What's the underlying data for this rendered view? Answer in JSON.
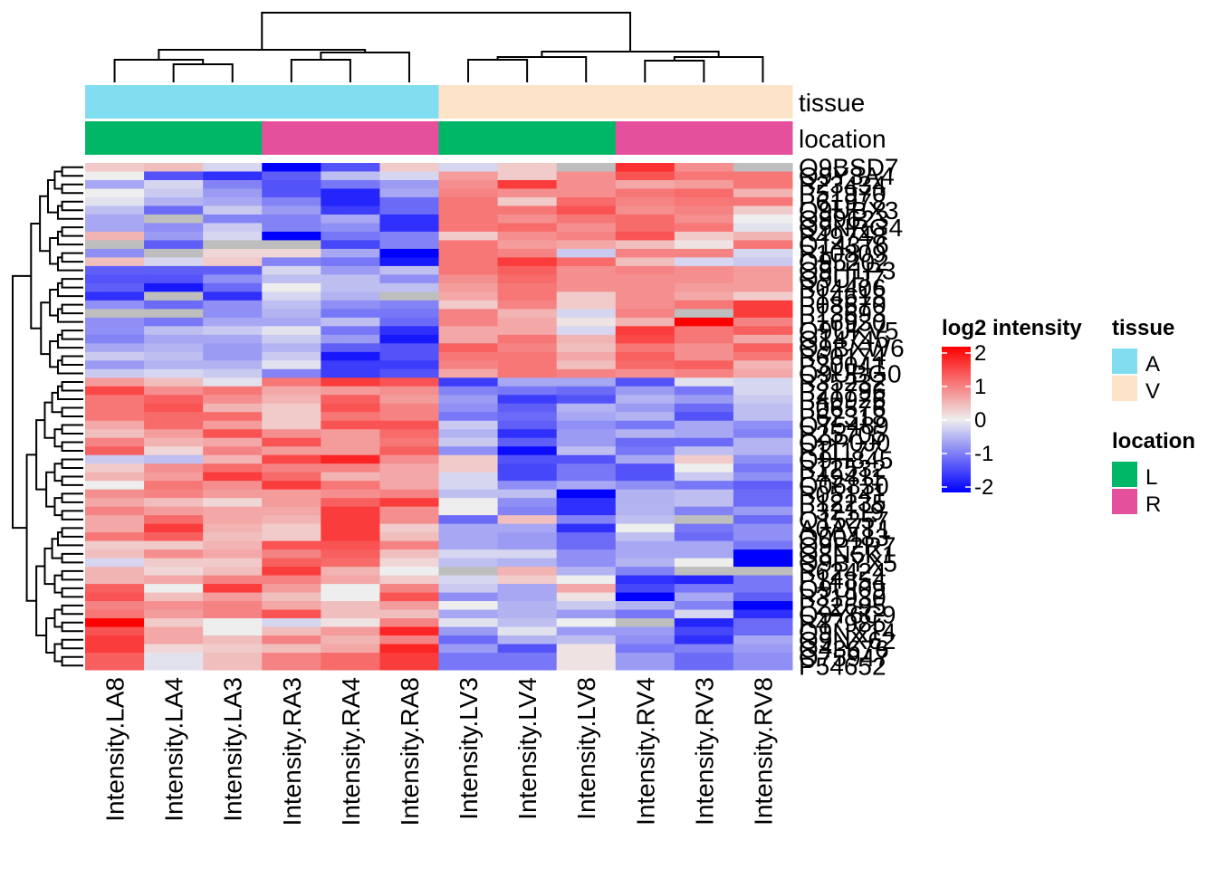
{
  "chart_data": {
    "type": "heatmap",
    "title": "",
    "columns": [
      "Intensity.LA8",
      "Intensity.LA4",
      "Intensity.LA3",
      "Intensity.RA3",
      "Intensity.RA4",
      "Intensity.RA8",
      "Intensity.LV3",
      "Intensity.LV4",
      "Intensity.LV8",
      "Intensity.RV4",
      "Intensity.RV3",
      "Intensity.RV8"
    ],
    "column_annotations": {
      "tissue": [
        "A",
        "A",
        "A",
        "A",
        "A",
        "A",
        "V",
        "V",
        "V",
        "V",
        "V",
        "V"
      ],
      "location": [
        "L",
        "L",
        "L",
        "R",
        "R",
        "R",
        "L",
        "L",
        "L",
        "R",
        "R",
        "R"
      ]
    },
    "annotation_names": [
      "tissue",
      "location"
    ],
    "row_labels": [
      "Q9BSD7",
      "Q9Y3A4",
      "P23434",
      "P51970",
      "P61978",
      "Q9UBX3",
      "Q99623",
      "Q9NRG4",
      "P49748",
      "Q14376",
      "P10809",
      "O95202",
      "Q9H1P3",
      "Q9UIJ7",
      "P04406",
      "P14618",
      "P08670",
      "P13693",
      "P16930",
      "Q9UKV5",
      "O14745",
      "Q9BXW6",
      "P60174",
      "P30041",
      "Q9UBG0",
      "P35232",
      "P21796",
      "P40926",
      "P06576",
      "P62318",
      "O75489",
      "P25705",
      "Q9P0J0",
      "P11177",
      "Q9H845",
      "P12532",
      "P49411",
      "Q06830",
      "P05141",
      "P12235",
      "P32119",
      "Q15257",
      "A0AVT1",
      "O00483",
      "Q9P2R7",
      "Q8N5K1",
      "Q9BYX5",
      "P62424",
      "P14854",
      "Q9UI09",
      "P31930",
      "P22695",
      "Q9Y6C9",
      "P47985",
      "Q9NX14",
      "Q9NX62",
      "O43676",
      "O75947",
      "P54652"
    ],
    "values": [
      [
        0.3,
        0.4,
        -0.2,
        -2.0,
        -1.3,
        0.3,
        -0.2,
        0.3,
        null,
        1.6,
        0.8,
        null
      ],
      [
        0.0,
        -1.3,
        -1.6,
        -1.2,
        -0.4,
        -0.2,
        0.7,
        0.3,
        0.8,
        1.3,
        1.0,
        1.0
      ],
      [
        -0.6,
        -0.2,
        -0.9,
        -1.3,
        -1.0,
        -0.7,
        0.8,
        1.5,
        0.8,
        0.6,
        0.7,
        1.0
      ],
      [
        0.0,
        -0.3,
        -0.7,
        -1.3,
        -1.7,
        -0.6,
        0.9,
        0.8,
        0.8,
        1.0,
        1.1,
        0.5
      ],
      [
        -0.1,
        -0.5,
        -0.6,
        -0.9,
        -1.7,
        -1.1,
        1.0,
        0.3,
        1.1,
        0.9,
        1.0,
        1.0
      ],
      [
        -0.4,
        -1.1,
        -0.3,
        -0.7,
        -1.5,
        -1.1,
        1.0,
        1.0,
        1.3,
        0.8,
        0.9,
        0.3
      ],
      [
        -0.6,
        null,
        -0.9,
        -0.9,
        -0.6,
        -1.6,
        1.0,
        0.8,
        1.0,
        1.1,
        0.8,
        0.0
      ],
      [
        -0.6,
        -0.8,
        -0.3,
        -0.9,
        -0.8,
        -1.6,
        1.0,
        1.1,
        0.8,
        1.1,
        1.0,
        -0.1
      ],
      [
        0.5,
        -0.7,
        -0.2,
        -2.0,
        -1.0,
        -0.9,
        0.3,
        0.8,
        0.9,
        1.3,
        0.3,
        0.5
      ],
      [
        null,
        -1.2,
        null,
        null,
        -1.4,
        -0.9,
        1.0,
        0.7,
        0.6,
        0.4,
        0.1,
        1.0
      ],
      [
        -0.8,
        null,
        0.2,
        0.2,
        -0.6,
        -2.0,
        1.0,
        0.9,
        -0.3,
        0.9,
        0.9,
        -0.2
      ],
      [
        0.4,
        -0.2,
        0.3,
        -0.9,
        -1.0,
        -1.8,
        1.0,
        1.5,
        1.1,
        0.4,
        -0.2,
        -0.3
      ],
      [
        -1.2,
        -1.2,
        -1.2,
        -0.2,
        -0.7,
        -0.4,
        1.0,
        1.2,
        0.8,
        0.9,
        0.8,
        0.7
      ],
      [
        -1.3,
        -1.3,
        -0.8,
        -0.4,
        -0.4,
        -0.8,
        0.8,
        1.1,
        0.8,
        0.8,
        0.8,
        0.7
      ],
      [
        -1.2,
        -1.8,
        -1.1,
        0.0,
        -0.4,
        -0.4,
        0.7,
        1.0,
        0.8,
        0.8,
        0.7,
        0.7
      ],
      [
        -1.6,
        null,
        -1.6,
        -0.2,
        -0.5,
        null,
        0.6,
        1.0,
        0.3,
        0.8,
        0.6,
        0.3
      ],
      [
        -0.8,
        -1.1,
        -0.8,
        -0.4,
        -0.8,
        -0.9,
        0.3,
        0.9,
        0.3,
        0.8,
        1.0,
        1.5
      ],
      [
        null,
        null,
        -0.8,
        -0.5,
        -1.0,
        -1.0,
        0.9,
        0.5,
        -0.2,
        0.9,
        null,
        1.5
      ],
      [
        -0.8,
        -1.0,
        -0.6,
        -0.6,
        -0.4,
        -1.1,
        0.9,
        0.6,
        0.1,
        0.5,
        2.0,
        0.9
      ],
      [
        -0.8,
        -0.4,
        -0.3,
        -0.1,
        -1.0,
        -1.6,
        0.6,
        0.6,
        -0.2,
        1.5,
        1.0,
        1.2
      ],
      [
        -0.9,
        -0.6,
        -0.6,
        -0.3,
        -0.7,
        -1.8,
        0.6,
        1.0,
        0.5,
        1.4,
        1.0,
        0.6
      ],
      [
        -0.6,
        -0.5,
        -0.7,
        -0.5,
        -1.2,
        -1.3,
        1.2,
        0.9,
        0.4,
        1.0,
        0.8,
        1.2
      ],
      [
        -0.3,
        -0.4,
        -0.7,
        -0.3,
        -1.8,
        -1.3,
        1.0,
        1.0,
        0.6,
        1.2,
        0.8,
        1.0
      ],
      [
        -0.7,
        -0.5,
        -0.5,
        -0.1,
        -1.5,
        -1.5,
        0.9,
        1.0,
        0.4,
        1.1,
        1.2,
        0.5
      ],
      [
        -0.3,
        -0.2,
        -0.3,
        -0.9,
        -1.5,
        -1.3,
        0.6,
        1.0,
        0.9,
        0.8,
        0.9,
        0.6
      ],
      [
        0.7,
        0.4,
        -0.1,
        1.0,
        1.5,
        1.3,
        -1.5,
        -0.6,
        -0.6,
        -1.3,
        -0.1,
        -0.2
      ],
      [
        1.4,
        0.8,
        1.0,
        0.6,
        0.7,
        0.8,
        -0.9,
        -1.0,
        -1.1,
        -0.7,
        -1.0,
        -0.2
      ],
      [
        1.0,
        1.2,
        0.8,
        0.5,
        1.2,
        0.7,
        -0.7,
        -1.5,
        -1.3,
        -0.5,
        -0.7,
        -0.3
      ],
      [
        1.0,
        1.3,
        0.5,
        0.3,
        1.3,
        0.9,
        -0.8,
        -1.2,
        -0.5,
        -0.7,
        -1.1,
        -0.4
      ],
      [
        1.0,
        1.1,
        1.1,
        0.3,
        1.0,
        0.9,
        -1.0,
        -1.1,
        -0.6,
        -0.5,
        -1.3,
        -0.4
      ],
      [
        0.6,
        1.1,
        0.7,
        0.3,
        1.3,
        1.3,
        -0.3,
        -1.2,
        -0.8,
        -1.0,
        -0.6,
        -0.8
      ],
      [
        0.4,
        0.7,
        1.3,
        0.8,
        0.7,
        1.1,
        -0.5,
        -1.6,
        -0.7,
        -0.5,
        -0.6,
        -0.9
      ],
      [
        0.9,
        0.5,
        0.6,
        1.3,
        0.7,
        1.0,
        -0.3,
        -1.2,
        -0.7,
        -1.1,
        -1.1,
        -0.5
      ],
      [
        1.2,
        0.2,
        0.9,
        0.7,
        0.7,
        1.2,
        -0.8,
        -1.9,
        -0.4,
        -1.0,
        -0.4,
        -0.5
      ],
      [
        -0.3,
        -0.4,
        0.5,
        1.4,
        1.7,
        0.8,
        0.3,
        -1.3,
        -1.3,
        -0.6,
        0.3,
        -0.8
      ],
      [
        0.3,
        0.8,
        1.1,
        0.9,
        0.9,
        0.6,
        0.3,
        -1.4,
        -1.0,
        -1.3,
        0.0,
        -1.0
      ],
      [
        0.5,
        0.7,
        1.5,
        1.1,
        0.5,
        0.6,
        -0.2,
        -1.4,
        -1.0,
        -1.3,
        -0.3,
        -0.8
      ],
      [
        0.0,
        1.0,
        0.8,
        1.5,
        1.0,
        0.6,
        -0.2,
        -0.8,
        -0.6,
        -0.8,
        -1.0,
        -1.2
      ],
      [
        0.8,
        0.9,
        0.7,
        0.7,
        0.8,
        0.9,
        -0.4,
        -0.4,
        -2.0,
        -0.5,
        -0.4,
        -1.1
      ],
      [
        0.6,
        0.4,
        0.2,
        0.7,
        1.2,
        1.5,
        0.0,
        -0.8,
        -1.6,
        -0.5,
        -0.4,
        -1.1
      ],
      [
        0.9,
        0.7,
        0.6,
        0.6,
        1.5,
        0.8,
        0.0,
        -0.9,
        -1.6,
        -0.5,
        -0.9,
        -0.7
      ],
      [
        0.6,
        1.1,
        0.6,
        0.5,
        1.5,
        0.8,
        -1.1,
        0.4,
        -0.9,
        -0.4,
        null,
        -1.1
      ],
      [
        0.6,
        1.5,
        0.5,
        0.3,
        1.5,
        0.3,
        -0.6,
        -0.6,
        -1.6,
        0.0,
        -1.0,
        -0.8
      ],
      [
        1.0,
        1.2,
        0.4,
        0.3,
        1.5,
        0.4,
        -0.6,
        -0.7,
        -1.1,
        -0.4,
        -1.1,
        -0.8
      ],
      [
        0.3,
        0.3,
        0.5,
        1.3,
        1.3,
        0.9,
        -0.6,
        -0.7,
        -1.1,
        -0.6,
        -0.6,
        -1.0
      ],
      [
        0.4,
        0.8,
        0.6,
        0.9,
        1.2,
        0.4,
        -0.2,
        -0.2,
        -0.8,
        -0.6,
        -0.6,
        -2.0
      ],
      [
        -0.2,
        0.3,
        0.3,
        1.2,
        1.1,
        0.2,
        -0.4,
        -0.5,
        -0.8,
        -0.5,
        0.0,
        -2.0
      ],
      [
        0.5,
        0.2,
        0.4,
        1.5,
        0.5,
        0.0,
        null,
        0.5,
        -0.5,
        -0.9,
        null,
        null
      ],
      [
        0.5,
        0.6,
        0.9,
        0.9,
        0.6,
        0.3,
        -0.2,
        0.3,
        0.0,
        -1.6,
        -1.7,
        -1.0
      ],
      [
        1.2,
        0.0,
        1.5,
        0.7,
        0.0,
        0.9,
        -0.3,
        -0.6,
        0.6,
        -1.4,
        -1.0,
        -1.0
      ],
      [
        1.3,
        0.4,
        0.7,
        0.4,
        0.0,
        1.3,
        -0.8,
        -0.6,
        0.1,
        -2.0,
        -0.6,
        -1.2
      ],
      [
        0.9,
        0.8,
        0.9,
        0.6,
        0.4,
        0.7,
        0.0,
        -0.5,
        -0.3,
        -0.5,
        -0.9,
        -2.0
      ],
      [
        1.0,
        0.7,
        0.9,
        1.3,
        0.4,
        0.4,
        -0.6,
        -0.5,
        -0.7,
        -1.0,
        -0.2,
        -1.6
      ],
      [
        2.0,
        0.3,
        0.0,
        -0.2,
        0.1,
        0.9,
        -0.1,
        -0.4,
        0.0,
        null,
        -1.7,
        -1.1
      ],
      [
        1.3,
        0.6,
        0.0,
        0.4,
        0.7,
        1.7,
        -0.7,
        -0.1,
        -0.7,
        -0.7,
        -1.4,
        -1.1
      ],
      [
        1.5,
        0.6,
        0.4,
        0.9,
        0.5,
        0.9,
        -1.1,
        -0.5,
        -0.4,
        -0.8,
        -1.6,
        -0.6
      ],
      [
        1.5,
        0.2,
        0.3,
        0.4,
        0.6,
        1.7,
        -0.7,
        -1.3,
        0.1,
        -1.0,
        -0.9,
        -0.7
      ],
      [
        1.2,
        -0.1,
        0.4,
        0.9,
        1.1,
        1.5,
        -1.0,
        -1.0,
        0.1,
        -0.7,
        -1.1,
        -0.8
      ],
      [
        1.2,
        -0.1,
        0.4,
        0.9,
        1.1,
        1.5,
        -1.0,
        -1.0,
        0.1,
        -0.7,
        -1.1,
        -0.8
      ]
    ],
    "color_scale": {
      "min": -2,
      "mid": 0,
      "max": 2,
      "low_color": "#0000FF",
      "mid_color": "#EEEEEE",
      "high_color": "#FF0000",
      "na_color": "#BEBEBE"
    },
    "legends": [
      {
        "title": "log2 intensity",
        "type": "continuous",
        "ticks": [
          "2",
          "1",
          "0",
          "-1",
          "-2"
        ]
      },
      {
        "title": "tissue",
        "type": "discrete",
        "items": [
          {
            "label": "A",
            "color": "#80DEF0"
          },
          {
            "label": "V",
            "color": "#FDE4C8"
          }
        ]
      },
      {
        "title": "location",
        "type": "discrete",
        "items": [
          {
            "label": "L",
            "color": "#00B767"
          },
          {
            "label": "R",
            "color": "#E5509C"
          }
        ]
      }
    ],
    "row_dendrogram": true,
    "column_dendrogram": true,
    "legend_position": "right"
  }
}
